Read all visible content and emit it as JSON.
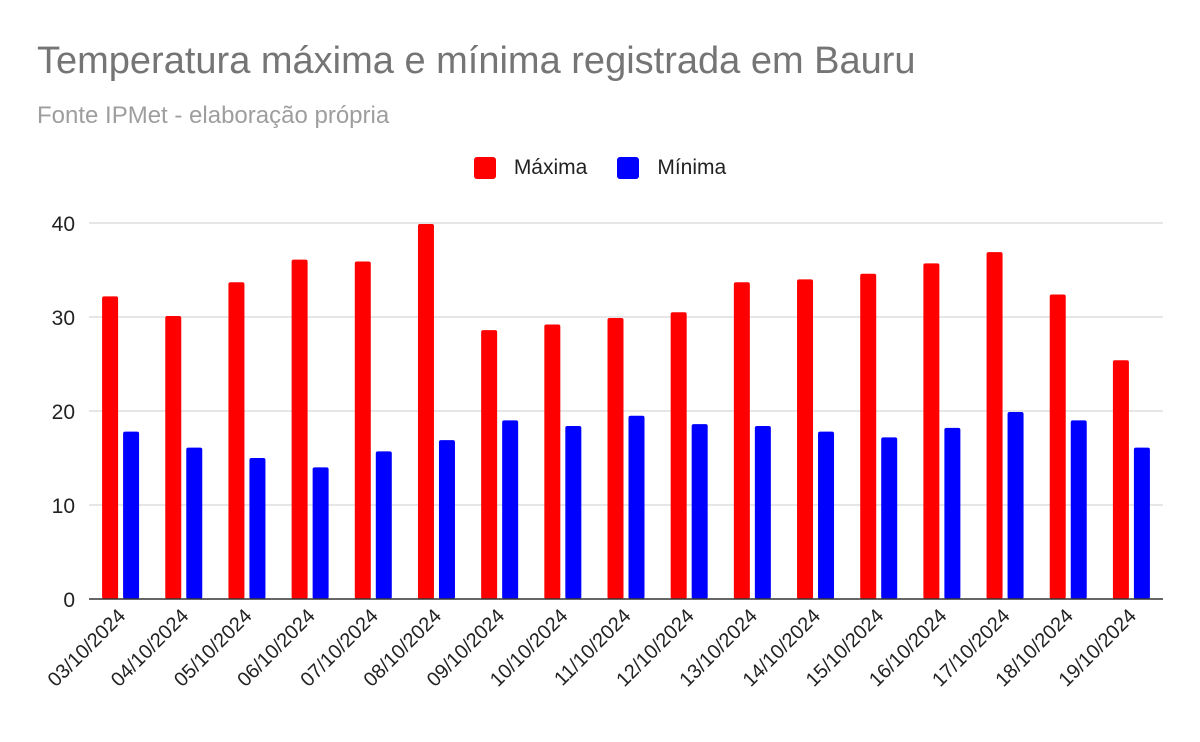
{
  "chart_data": {
    "type": "bar",
    "title": "Temperatura máxima e mínima registrada em Bauru",
    "subtitle": "Fonte IPMet - elaboração própria",
    "categories": [
      "03/10/2024",
      "04/10/2024",
      "05/10/2024",
      "06/10/2024",
      "07/10/2024",
      "08/10/2024",
      "09/10/2024",
      "10/10/2024",
      "11/10/2024",
      "12/10/2024",
      "13/10/2024",
      "14/10/2024",
      "15/10/2024",
      "16/10/2024",
      "17/10/2024",
      "18/10/2024",
      "19/10/2024"
    ],
    "series": [
      {
        "name": "Máxima",
        "color": "#ff0000",
        "values": [
          32.2,
          30.1,
          33.7,
          36.1,
          35.9,
          39.9,
          28.6,
          29.2,
          29.9,
          30.5,
          33.7,
          34.0,
          34.6,
          35.7,
          36.9,
          32.4,
          25.4
        ]
      },
      {
        "name": "Mínima",
        "color": "#0000ff",
        "values": [
          17.8,
          16.1,
          15.0,
          14.0,
          15.7,
          16.9,
          19.0,
          18.4,
          19.5,
          18.6,
          18.4,
          17.8,
          17.2,
          18.2,
          19.9,
          19.0,
          16.1
        ]
      }
    ],
    "yticks": [
      0,
      10,
      20,
      30,
      40
    ],
    "ylim": [
      0,
      40
    ],
    "grid": true,
    "legend": "top-center"
  }
}
